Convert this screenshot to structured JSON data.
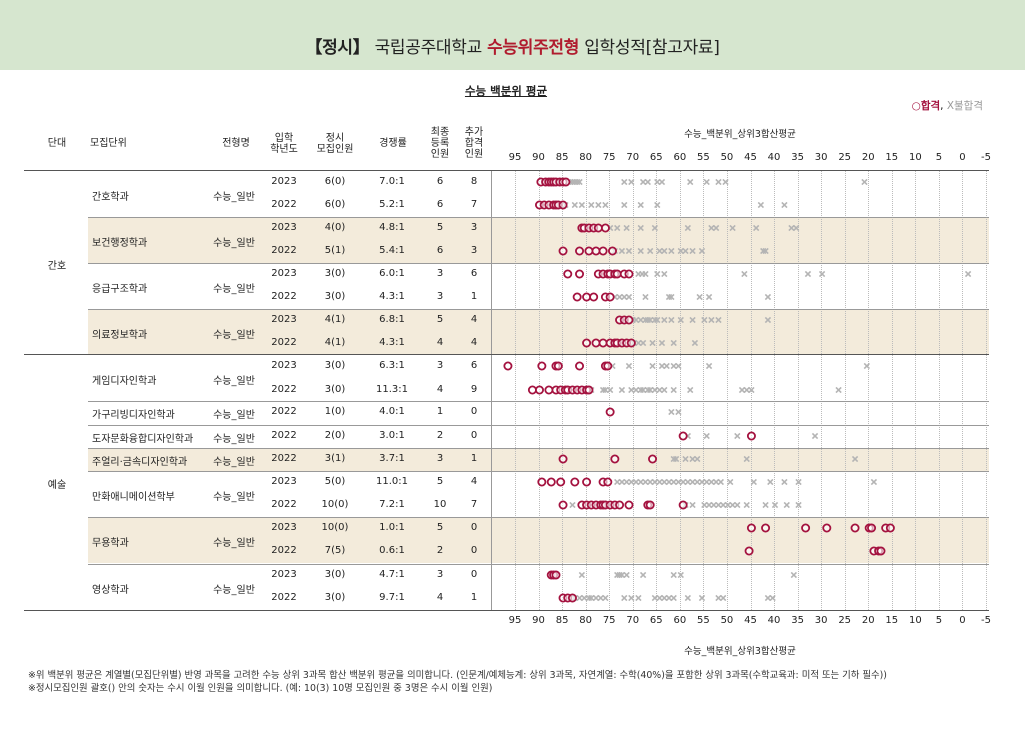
{
  "header": {
    "title_part1": "【정시】",
    "title_part2": " 국립공주대학교 ",
    "title_part3": "수능위주전형",
    "title_part4": " 입학성적[참고자료]"
  },
  "subtitle": "수능 백분위 평균",
  "legend": {
    "pass": "○합격",
    "sep": ",",
    "fail": " X불합격"
  },
  "columns": {
    "group": "단대",
    "unit": "모집단위",
    "type": "전형명",
    "year": [
      "입학",
      "학년도"
    ],
    "quota": [
      "정시",
      "모집인원"
    ],
    "ratio": "경쟁률",
    "final": [
      "최종",
      "등록",
      "인원"
    ],
    "extra": [
      "추가",
      "합격",
      "인원"
    ]
  },
  "groups": [
    {
      "name": "간호"
    },
    {
      "name": "예술"
    }
  ],
  "units": [
    {
      "name": "간호학과",
      "type": "수능_일반",
      "band": false
    },
    {
      "name": "보건행정학과",
      "type": "수능_일반",
      "band": true
    },
    {
      "name": "응급구조학과",
      "type": "수능_일반",
      "band": false
    },
    {
      "name": "의료정보학과",
      "type": "수능_일반",
      "band": true
    },
    {
      "name": "게임디자인학과",
      "type": "수능_일반",
      "band": false
    },
    {
      "name": "가구리빙디자인학과",
      "type": "수능_일반",
      "band": false
    },
    {
      "name": "도자문화융합디자인학과",
      "type": "수능_일반",
      "band": false
    },
    {
      "name": "주얼리·금속디자인학과",
      "type": "수능_일반",
      "band": true
    },
    {
      "name": "만화애니메이션학부",
      "type": "수능_일반",
      "band": false
    },
    {
      "name": "무용학과",
      "type": "수능_일반",
      "band": true
    },
    {
      "name": "영상학과",
      "type": "수능_일반",
      "band": false
    }
  ],
  "rows": [
    {
      "year": "2023",
      "quota": "6(0)",
      "ratio": "7.0:1",
      "final": "6",
      "extra": "8"
    },
    {
      "year": "2022",
      "quota": "6(0)",
      "ratio": "5.2:1",
      "final": "6",
      "extra": "7"
    },
    {
      "year": "2023",
      "quota": "4(0)",
      "ratio": "4.8:1",
      "final": "5",
      "extra": "3"
    },
    {
      "year": "2022",
      "quota": "5(1)",
      "ratio": "5.4:1",
      "final": "6",
      "extra": "3"
    },
    {
      "year": "2023",
      "quota": "3(0)",
      "ratio": "6.0:1",
      "final": "3",
      "extra": "6"
    },
    {
      "year": "2022",
      "quota": "3(0)",
      "ratio": "4.3:1",
      "final": "3",
      "extra": "1"
    },
    {
      "year": "2023",
      "quota": "4(1)",
      "ratio": "6.8:1",
      "final": "5",
      "extra": "4"
    },
    {
      "year": "2022",
      "quota": "4(1)",
      "ratio": "4.3:1",
      "final": "4",
      "extra": "4"
    },
    {
      "year": "2023",
      "quota": "3(0)",
      "ratio": "6.3:1",
      "final": "3",
      "extra": "6"
    },
    {
      "year": "2022",
      "quota": "3(0)",
      "ratio": "11.3:1",
      "final": "4",
      "extra": "9"
    },
    {
      "year": "2022",
      "quota": "1(0)",
      "ratio": "4.0:1",
      "final": "1",
      "extra": "0"
    },
    {
      "year": "2022",
      "quota": "2(0)",
      "ratio": "3.0:1",
      "final": "2",
      "extra": "0"
    },
    {
      "year": "2022",
      "quota": "3(1)",
      "ratio": "3.7:1",
      "final": "3",
      "extra": "1"
    },
    {
      "year": "2023",
      "quota": "5(0)",
      "ratio": "11.0:1",
      "final": "5",
      "extra": "4"
    },
    {
      "year": "2022",
      "quota": "10(0)",
      "ratio": "7.2:1",
      "final": "10",
      "extra": "7"
    },
    {
      "year": "2023",
      "quota": "10(0)",
      "ratio": "1.0:1",
      "final": "5",
      "extra": "0"
    },
    {
      "year": "2022",
      "quota": "7(5)",
      "ratio": "0.6:1",
      "final": "2",
      "extra": "0"
    },
    {
      "year": "2023",
      "quota": "3(0)",
      "ratio": "4.7:1",
      "final": "3",
      "extra": "0"
    },
    {
      "year": "2022",
      "quota": "3(0)",
      "ratio": "9.7:1",
      "final": "4",
      "extra": "1"
    }
  ],
  "chart_data": {
    "type": "scatter",
    "xlabel": "수능_백분위_상위3합산평균",
    "xlim": [
      96,
      -5
    ],
    "x_reversed": true,
    "xticks": [
      "95",
      "90",
      "85",
      "80",
      "75",
      "70",
      "65",
      "60",
      "55",
      "50",
      "45",
      "40",
      "35",
      "30",
      "25",
      "20",
      "15",
      "10",
      "5",
      "0",
      "-5"
    ],
    "grid": true,
    "legend_position": "top-right",
    "colors": {
      "pass": "#a4123f",
      "fail": "#b4b4b4"
    },
    "series": [
      {
        "name": "합격",
        "marker": "circle"
      },
      {
        "name": "불합격",
        "marker": "x"
      }
    ],
    "rows": [
      {
        "pass": [
          89.5,
          88.5,
          87.8,
          87.3,
          86.8,
          86.3,
          85.5,
          84.8,
          84.2
        ],
        "fail": [
          83.3,
          82.8,
          82.3,
          81.8,
          81.3,
          71.8,
          70.3,
          67.8,
          66.8,
          64.8,
          63.8,
          57.8,
          54.3,
          51.8,
          50.3,
          20.8
        ]
      },
      {
        "pass": [
          89.8,
          88.8,
          87.8,
          86.8,
          86.3,
          85.8,
          84.8
        ],
        "fail": [
          84.3,
          82.3,
          80.8,
          78.8,
          77.3,
          75.8,
          71.8,
          68.3,
          64.8,
          42.8,
          37.8
        ]
      },
      {
        "pass": [
          80.8,
          80.3,
          79.3,
          78.3,
          77.3,
          75.8
        ],
        "fail": [
          74.8,
          73.3,
          71.3,
          68.3,
          65.3,
          58.3,
          53.3,
          52.3,
          48.8,
          43.8,
          36.3,
          35.3
        ]
      },
      {
        "pass": [
          84.8,
          81.3,
          79.3,
          77.8,
          76.3,
          74.3
        ],
        "fail": [
          73.8,
          72.3,
          70.8,
          68.3,
          66.3,
          64.3,
          63.3,
          61.8,
          59.8,
          58.8,
          57.3,
          55.3,
          42.3,
          41.8
        ]
      },
      {
        "pass": [
          83.8,
          81.3,
          77.3,
          76.3,
          75.3,
          74.8,
          73.8,
          73.3,
          71.8,
          70.8
        ],
        "fail": [
          68.8,
          68.0,
          67.3,
          64.8,
          63.3,
          46.3,
          32.8,
          29.8,
          -1.2
        ]
      },
      {
        "pass": [
          81.8,
          79.8,
          78.3,
          75.8,
          74.8
        ],
        "fail": [
          73.8,
          72.8,
          71.8,
          70.8,
          67.3,
          62.3,
          61.8,
          55.8,
          53.8,
          41.3
        ]
      },
      {
        "pass": [
          72.8,
          71.8,
          70.8
        ],
        "fail": [
          70.0,
          69.3,
          68.3,
          67.3,
          66.8,
          66.3,
          65.3,
          64.8,
          63.3,
          61.8,
          59.8,
          57.3,
          54.8,
          53.3,
          51.8,
          41.3
        ]
      },
      {
        "pass": [
          79.8,
          77.8,
          76.3,
          74.8,
          73.8,
          73.3,
          72.3,
          71.3,
          70.3
        ],
        "fail": [
          69.8,
          68.8,
          67.8,
          65.8,
          63.8,
          61.3,
          56.8
        ]
      },
      {
        "pass": [
          96.5,
          89.3,
          86.3,
          85.8,
          81.3,
          75.8,
          75.3
        ],
        "fail": [
          74.3,
          70.8,
          65.8,
          63.8,
          62.8,
          61.3,
          60.3,
          53.8,
          20.3
        ]
      },
      {
        "pass": [
          91.3,
          89.8,
          87.8,
          86.3,
          85.3,
          84.3,
          83.8,
          82.8,
          81.8,
          80.8,
          79.8,
          79.3
        ],
        "fail": [
          78.8,
          76.3,
          75.8,
          74.8,
          72.3,
          70.3,
          69.3,
          68.3,
          67.8,
          66.8,
          66.3,
          65.3,
          64.3,
          63.3,
          61.3,
          57.8,
          46.8,
          45.8,
          44.8,
          26.3
        ]
      },
      {
        "pass": [
          74.8
        ],
        "fail": [
          61.8,
          60.3
        ]
      },
      {
        "pass": [
          59.3,
          44.8
        ],
        "fail": [
          58.3,
          54.3,
          47.8,
          31.3
        ]
      },
      {
        "pass": [
          84.8,
          73.8,
          65.8
        ],
        "fail": [
          61.3,
          60.8,
          58.8,
          57.3,
          56.3,
          45.8,
          22.8
        ]
      },
      {
        "pass": [
          89.3,
          87.3,
          85.3,
          82.3,
          79.8,
          76.3,
          75.3
        ],
        "fail": [
          73.3,
          72.3,
          71.3,
          70.3,
          69.3,
          68.3,
          67.3,
          66.3,
          65.3,
          64.3,
          63.3,
          62.3,
          61.3,
          60.3,
          59.3,
          58.3,
          57.3,
          56.3,
          55.3,
          54.3,
          53.3,
          52.3,
          51.3,
          49.3,
          44.3,
          40.8,
          37.8,
          34.8,
          18.8
        ]
      },
      {
        "pass": [
          84.8,
          80.8,
          79.8,
          78.8,
          77.8,
          76.8,
          76.3,
          75.8,
          74.8,
          73.8,
          72.8,
          70.8,
          66.8,
          66.3,
          59.3
        ],
        "fail": [
          82.8,
          58.8,
          57.3,
          54.8,
          53.8,
          52.8,
          51.8,
          50.8,
          49.8,
          48.8,
          47.8,
          45.8,
          41.8,
          39.8,
          37.3,
          34.8
        ]
      },
      {
        "pass": [
          44.8,
          41.8,
          33.3,
          28.8,
          22.8,
          19.8,
          19.3,
          16.3,
          15.3
        ]
      },
      {
        "pass": [
          45.3,
          18.8,
          17.8,
          17.3
        ]
      },
      {
        "pass": [
          87.3,
          86.8,
          86.3
        ],
        "fail": [
          80.8,
          73.3,
          72.8,
          72.3,
          71.3,
          67.8,
          61.3,
          59.8,
          35.8
        ]
      },
      {
        "pass": [
          84.8,
          83.8,
          82.8
        ],
        "fail": [
          82.3,
          81.3,
          80.3,
          79.3,
          78.8,
          77.8,
          76.8,
          75.8,
          71.8,
          70.3,
          68.8,
          65.3,
          64.3,
          63.3,
          62.3,
          61.3,
          58.3,
          55.3,
          51.8,
          50.8,
          41.3,
          40.3
        ]
      }
    ]
  },
  "footnotes": [
    "※위 백분위 평균은 계열별(모집단위별) 반영 과목을 고려한 수능 상위 3과목 합산 백분위 평균을 의미합니다. (인문계/예체능계: 상위 3과목, 자연계열: 수학(40%)을 포함한 상위 3과목(수학교육과: 미적 또는 기하 필수))",
    "※정시모집인원 괄호() 안의 숫자는 수시 이월 인원을 의미합니다. (예: 10(3) 10명 모집인원 중 3명은 수시 이월 인원)"
  ]
}
